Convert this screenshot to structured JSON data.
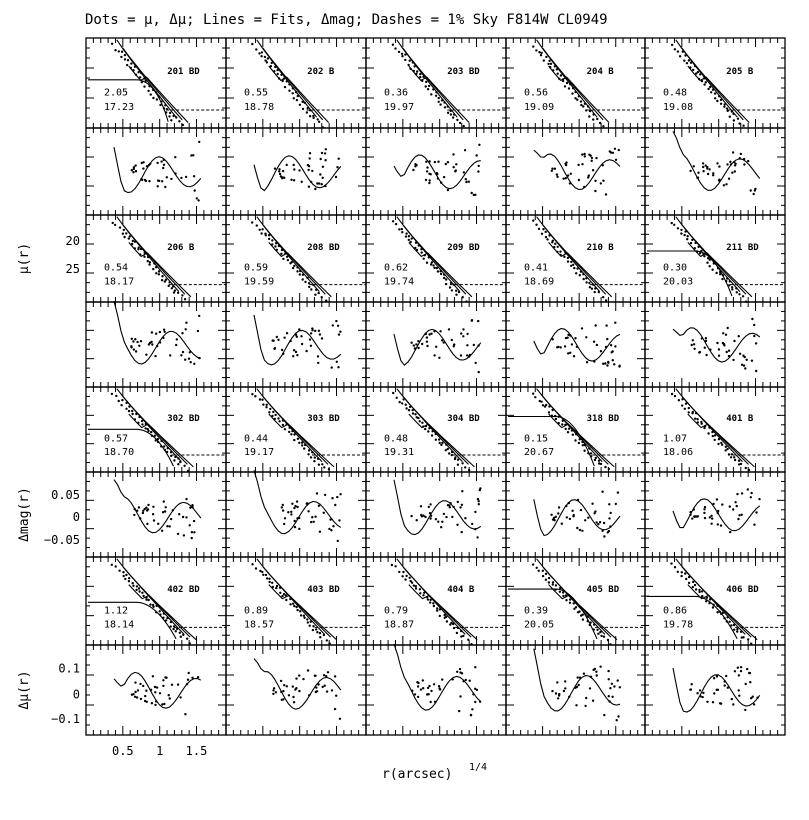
{
  "figure": {
    "title": "Dots = μ, Δμ; Lines = Fits, Δmag; Dashes = 1% Sky F814W    CL0949"
  },
  "chart_data": {
    "type": "scatter",
    "title": "Dots = μ, Δμ; Lines = Fits, Δmag; Dashes = 1% Sky F814W    CL0949",
    "xlabel": "r(arcsec)",
    "xlabel_sup": "1/4",
    "xlim": [
      0,
      1.9
    ],
    "x_ticks": [
      "0.5",
      "1",
      "1.5"
    ],
    "x_tick_values": [
      0.5,
      1.0,
      1.5
    ],
    "y_axes": [
      {
        "label": "μ(r)",
        "row": 2,
        "ticks": [
          "20",
          "25"
        ],
        "tick_values": [
          20,
          25
        ],
        "ylim": [
          17,
          27.5
        ],
        "inverted": true
      },
      {
        "label": "Δmag(r)",
        "row": 5,
        "ticks": [
          "0.05",
          "0",
          "−0.05"
        ],
        "tick_values": [
          0.05,
          0,
          -0.05
        ],
        "ylim": [
          -0.09,
          0.09
        ]
      },
      {
        "label": "Δμ(r)",
        "row": 7,
        "ticks": [
          "0.1",
          "0",
          "−0.1"
        ],
        "tick_values": [
          0.1,
          0,
          -0.1
        ],
        "ylim": [
          -0.17,
          0.17
        ]
      }
    ],
    "galaxies": [
      {
        "id": "201",
        "type": "BD",
        "v1": "2.05",
        "v2": "17.23"
      },
      {
        "id": "202",
        "type": "B",
        "v1": "0.55",
        "v2": "18.78"
      },
      {
        "id": "203",
        "type": "BD",
        "v1": "0.36",
        "v2": "19.97"
      },
      {
        "id": "204",
        "type": "B",
        "v1": "0.56",
        "v2": "19.09"
      },
      {
        "id": "205",
        "type": "B",
        "v1": "0.48",
        "v2": "19.08"
      },
      {
        "id": "206",
        "type": "B",
        "v1": "0.54",
        "v2": "18.17"
      },
      {
        "id": "208",
        "type": "BD",
        "v1": "0.59",
        "v2": "19.59"
      },
      {
        "id": "209",
        "type": "BD",
        "v1": "0.62",
        "v2": "19.74"
      },
      {
        "id": "210",
        "type": "B",
        "v1": "0.41",
        "v2": "18.69"
      },
      {
        "id": "211",
        "type": "BD",
        "v1": "0.30",
        "v2": "20.03"
      },
      {
        "id": "302",
        "type": "BD",
        "v1": "0.57",
        "v2": "18.70"
      },
      {
        "id": "303",
        "type": "BD",
        "v1": "0.44",
        "v2": "19.17"
      },
      {
        "id": "304",
        "type": "BD",
        "v1": "0.48",
        "v2": "19.31"
      },
      {
        "id": "318",
        "type": "BD",
        "v1": "0.15",
        "v2": "20.67"
      },
      {
        "id": "401",
        "type": "B",
        "v1": "1.07",
        "v2": "18.06"
      },
      {
        "id": "402",
        "type": "BD",
        "v1": "1.12",
        "v2": "18.14"
      },
      {
        "id": "403",
        "type": "BD",
        "v1": "0.89",
        "v2": "18.57"
      },
      {
        "id": "404",
        "type": "B",
        "v1": "0.79",
        "v2": "18.87"
      },
      {
        "id": "405",
        "type": "BD",
        "v1": "0.39",
        "v2": "20.05"
      },
      {
        "id": "406",
        "type": "BD",
        "v1": "0.86",
        "v2": "19.78"
      }
    ]
  }
}
